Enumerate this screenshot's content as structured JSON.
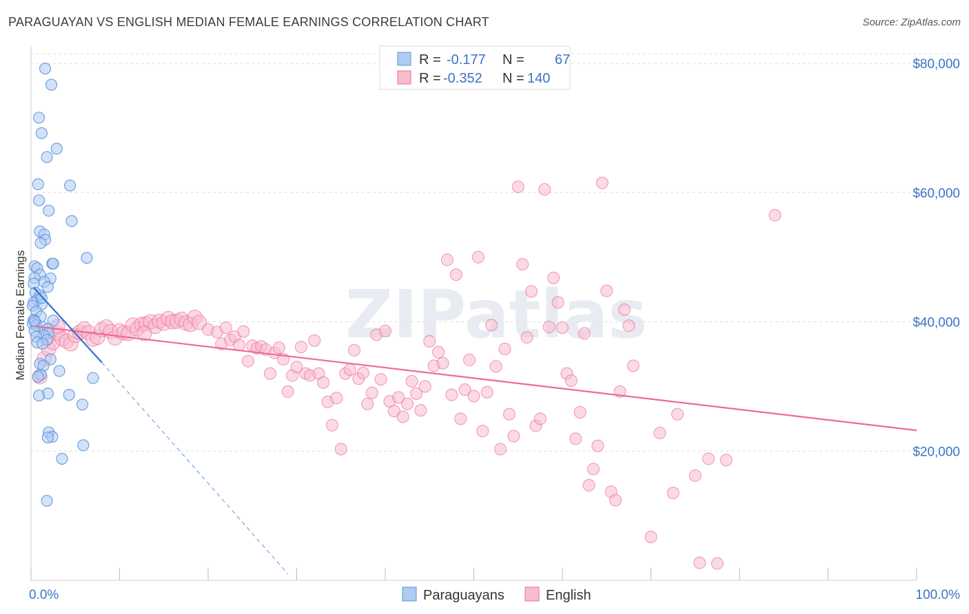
{
  "title": "PARAGUAYAN VS ENGLISH MEDIAN FEMALE EARNINGS CORRELATION CHART",
  "source": "Source: ZipAtlas.com",
  "watermark": "ZIPatlas",
  "colors": {
    "paraguayans": "#5b93dc",
    "paraguayans_fill": "#aecbf2",
    "english": "#ec6a96",
    "english_fill": "#f7bccd",
    "axis_text": "#3a74c6"
  },
  "legend": {
    "rows": [
      {
        "r_label": "R =",
        "r_value": "-0.177",
        "n_label": "N =",
        "n_value": "67"
      },
      {
        "r_label": "R =",
        "r_value": "-0.352",
        "n_label": "N =",
        "n_value": "140"
      }
    ]
  },
  "chart_data": {
    "type": "scatter",
    "ylabel": "Median Female Earnings",
    "x_tick_labels": [
      "0.0%",
      "100.0%"
    ],
    "y_tick_labels": [
      "$20,000",
      "$40,000",
      "$60,000",
      "$80,000"
    ],
    "y_ticks": [
      20000,
      40000,
      60000,
      80000
    ],
    "xlim": [
      0,
      100
    ],
    "ylim": [
      0,
      81500
    ],
    "grid": true,
    "legend_position": "top-center",
    "series": [
      {
        "name": "Paraguayans",
        "trend": {
          "x": [
            0.3,
            8.0
          ],
          "y": [
            45300,
            33700
          ],
          "dashed_to": [
            29.0,
            1000
          ]
        },
        "points": [
          [
            1.6,
            79200
          ],
          [
            2.3,
            76700
          ],
          [
            0.9,
            71600
          ],
          [
            1.2,
            69200
          ],
          [
            2.9,
            66800
          ],
          [
            1.8,
            65500
          ],
          [
            0.8,
            61300
          ],
          [
            4.4,
            61100
          ],
          [
            0.9,
            58800
          ],
          [
            2.0,
            57200
          ],
          [
            4.6,
            55600
          ],
          [
            1.0,
            54000
          ],
          [
            1.5,
            53500
          ],
          [
            1.6,
            52700
          ],
          [
            1.1,
            52200
          ],
          [
            6.3,
            49900
          ],
          [
            2.4,
            49000
          ],
          [
            2.5,
            49000
          ],
          [
            0.4,
            48600
          ],
          [
            0.7,
            48300
          ],
          [
            1.0,
            47300
          ],
          [
            0.4,
            46800
          ],
          [
            2.2,
            46700
          ],
          [
            1.5,
            46200
          ],
          [
            0.3,
            45900
          ],
          [
            1.9,
            45400
          ],
          [
            0.5,
            44500
          ],
          [
            1.0,
            44100
          ],
          [
            0.7,
            43400
          ],
          [
            0.3,
            43000
          ],
          [
            1.2,
            42700
          ],
          [
            0.2,
            42500
          ],
          [
            0.6,
            41600
          ],
          [
            1.1,
            40800
          ],
          [
            0.3,
            40300
          ],
          [
            2.5,
            40200
          ],
          [
            0.5,
            39900
          ],
          [
            0.2,
            39700
          ],
          [
            0.6,
            39500
          ],
          [
            1.3,
            39200
          ],
          [
            1.9,
            38900
          ],
          [
            0.4,
            38600
          ],
          [
            2.0,
            38300
          ],
          [
            1.4,
            37900
          ],
          [
            0.6,
            37700
          ],
          [
            1.8,
            37200
          ],
          [
            0.7,
            36800
          ],
          [
            1.3,
            36600
          ],
          [
            2.2,
            34200
          ],
          [
            1.0,
            33500
          ],
          [
            1.4,
            33200
          ],
          [
            3.2,
            32400
          ],
          [
            1.1,
            31800
          ],
          [
            0.8,
            31500
          ],
          [
            7.0,
            31300
          ],
          [
            1.9,
            28900
          ],
          [
            4.3,
            28700
          ],
          [
            0.9,
            28600
          ],
          [
            5.8,
            27200
          ],
          [
            2.0,
            22900
          ],
          [
            2.4,
            22200
          ],
          [
            1.9,
            22100
          ],
          [
            5.9,
            20900
          ],
          [
            3.5,
            18800
          ],
          [
            1.8,
            12300
          ],
          [
            1.2,
            43700
          ],
          [
            0.4,
            40100
          ]
        ]
      },
      {
        "name": "English",
        "trend": {
          "x": [
            0.5,
            100.0
          ],
          "y": [
            39300,
            23200
          ]
        },
        "points": [
          [
            1.0,
            31500
          ],
          [
            1.5,
            34300
          ],
          [
            2.0,
            35800
          ],
          [
            2.5,
            36800
          ],
          [
            3.0,
            38200
          ],
          [
            3.5,
            37400
          ],
          [
            4.0,
            37000
          ],
          [
            4.5,
            36600
          ],
          [
            5.0,
            37900
          ],
          [
            5.5,
            38400
          ],
          [
            6.0,
            38900
          ],
          [
            6.5,
            38300
          ],
          [
            7.0,
            37300
          ],
          [
            7.5,
            37600
          ],
          [
            8.0,
            38800
          ],
          [
            8.5,
            39200
          ],
          [
            9.0,
            38500
          ],
          [
            9.5,
            37500
          ],
          [
            10.0,
            38600
          ],
          [
            10.5,
            38300
          ],
          [
            11.0,
            38200
          ],
          [
            11.5,
            39500
          ],
          [
            12.0,
            38900
          ],
          [
            12.5,
            39600
          ],
          [
            13.0,
            39700
          ],
          [
            13.5,
            40000
          ],
          [
            14.0,
            39300
          ],
          [
            14.5,
            40100
          ],
          [
            15.0,
            39800
          ],
          [
            15.5,
            40500
          ],
          [
            16.0,
            40000
          ],
          [
            16.5,
            40100
          ],
          [
            17.0,
            40400
          ],
          [
            17.5,
            39800
          ],
          [
            18.0,
            39600
          ],
          [
            18.5,
            40700
          ],
          [
            19.0,
            39900
          ],
          [
            20.0,
            38800
          ],
          [
            21.0,
            38400
          ],
          [
            21.5,
            36600
          ],
          [
            22.0,
            39100
          ],
          [
            22.5,
            37200
          ],
          [
            23.0,
            37700
          ],
          [
            23.5,
            36400
          ],
          [
            24.0,
            38500
          ],
          [
            24.5,
            33900
          ],
          [
            25.0,
            36300
          ],
          [
            25.5,
            35900
          ],
          [
            26.0,
            36200
          ],
          [
            26.5,
            35700
          ],
          [
            27.0,
            32000
          ],
          [
            27.5,
            35200
          ],
          [
            28.0,
            36000
          ],
          [
            28.5,
            34200
          ],
          [
            29.0,
            29200
          ],
          [
            29.5,
            31700
          ],
          [
            30.0,
            33000
          ],
          [
            30.5,
            36100
          ],
          [
            31.0,
            32000
          ],
          [
            31.5,
            31700
          ],
          [
            32.0,
            37100
          ],
          [
            32.5,
            32000
          ],
          [
            33.0,
            30600
          ],
          [
            33.5,
            27600
          ],
          [
            34.0,
            24000
          ],
          [
            34.5,
            28200
          ],
          [
            35.0,
            20300
          ],
          [
            35.5,
            32000
          ],
          [
            36.0,
            32600
          ],
          [
            36.5,
            35600
          ],
          [
            37.0,
            31200
          ],
          [
            37.5,
            32100
          ],
          [
            38.0,
            27300
          ],
          [
            38.5,
            29000
          ],
          [
            39.0,
            38000
          ],
          [
            39.5,
            31100
          ],
          [
            40.0,
            38600
          ],
          [
            40.5,
            27700
          ],
          [
            41.0,
            26200
          ],
          [
            41.5,
            28300
          ],
          [
            42.0,
            25300
          ],
          [
            42.5,
            27300
          ],
          [
            43.0,
            30800
          ],
          [
            43.5,
            28900
          ],
          [
            44.0,
            26300
          ],
          [
            44.5,
            30000
          ],
          [
            45.0,
            37000
          ],
          [
            45.5,
            33200
          ],
          [
            46.0,
            35300
          ],
          [
            46.5,
            33600
          ],
          [
            47.0,
            49600
          ],
          [
            47.5,
            28700
          ],
          [
            48.0,
            47300
          ],
          [
            48.5,
            25000
          ],
          [
            49.0,
            29500
          ],
          [
            49.5,
            34100
          ],
          [
            50.0,
            28500
          ],
          [
            50.5,
            50000
          ],
          [
            51.0,
            23100
          ],
          [
            51.5,
            29100
          ],
          [
            52.0,
            39500
          ],
          [
            52.5,
            33100
          ],
          [
            53.0,
            20300
          ],
          [
            53.5,
            35800
          ],
          [
            54.0,
            25700
          ],
          [
            54.5,
            22300
          ],
          [
            55.0,
            60900
          ],
          [
            55.5,
            48900
          ],
          [
            56.0,
            37600
          ],
          [
            56.5,
            44700
          ],
          [
            57.0,
            23900
          ],
          [
            57.5,
            25000
          ],
          [
            58.0,
            60500
          ],
          [
            58.5,
            39200
          ],
          [
            59.0,
            46800
          ],
          [
            59.5,
            43000
          ],
          [
            60.0,
            39100
          ],
          [
            60.5,
            32000
          ],
          [
            61.0,
            30900
          ],
          [
            61.5,
            21900
          ],
          [
            62.0,
            26000
          ],
          [
            62.5,
            38200
          ],
          [
            63.0,
            14700
          ],
          [
            63.5,
            17200
          ],
          [
            64.0,
            20800
          ],
          [
            64.5,
            61500
          ],
          [
            65.0,
            44800
          ],
          [
            65.5,
            13700
          ],
          [
            66.0,
            12400
          ],
          [
            66.5,
            29200
          ],
          [
            67.0,
            41900
          ],
          [
            67.5,
            39400
          ],
          [
            68.0,
            33200
          ],
          [
            70.0,
            6700
          ],
          [
            71.0,
            22800
          ],
          [
            72.5,
            13500
          ],
          [
            73.0,
            25700
          ],
          [
            75.0,
            16200
          ],
          [
            75.5,
            2700
          ],
          [
            76.5,
            18800
          ],
          [
            77.5,
            2600
          ],
          [
            78.5,
            18600
          ],
          [
            84.0,
            56500
          ],
          [
            3.0,
            39300
          ],
          [
            1.8,
            37600
          ],
          [
            12.8,
            38200
          ]
        ]
      }
    ]
  }
}
